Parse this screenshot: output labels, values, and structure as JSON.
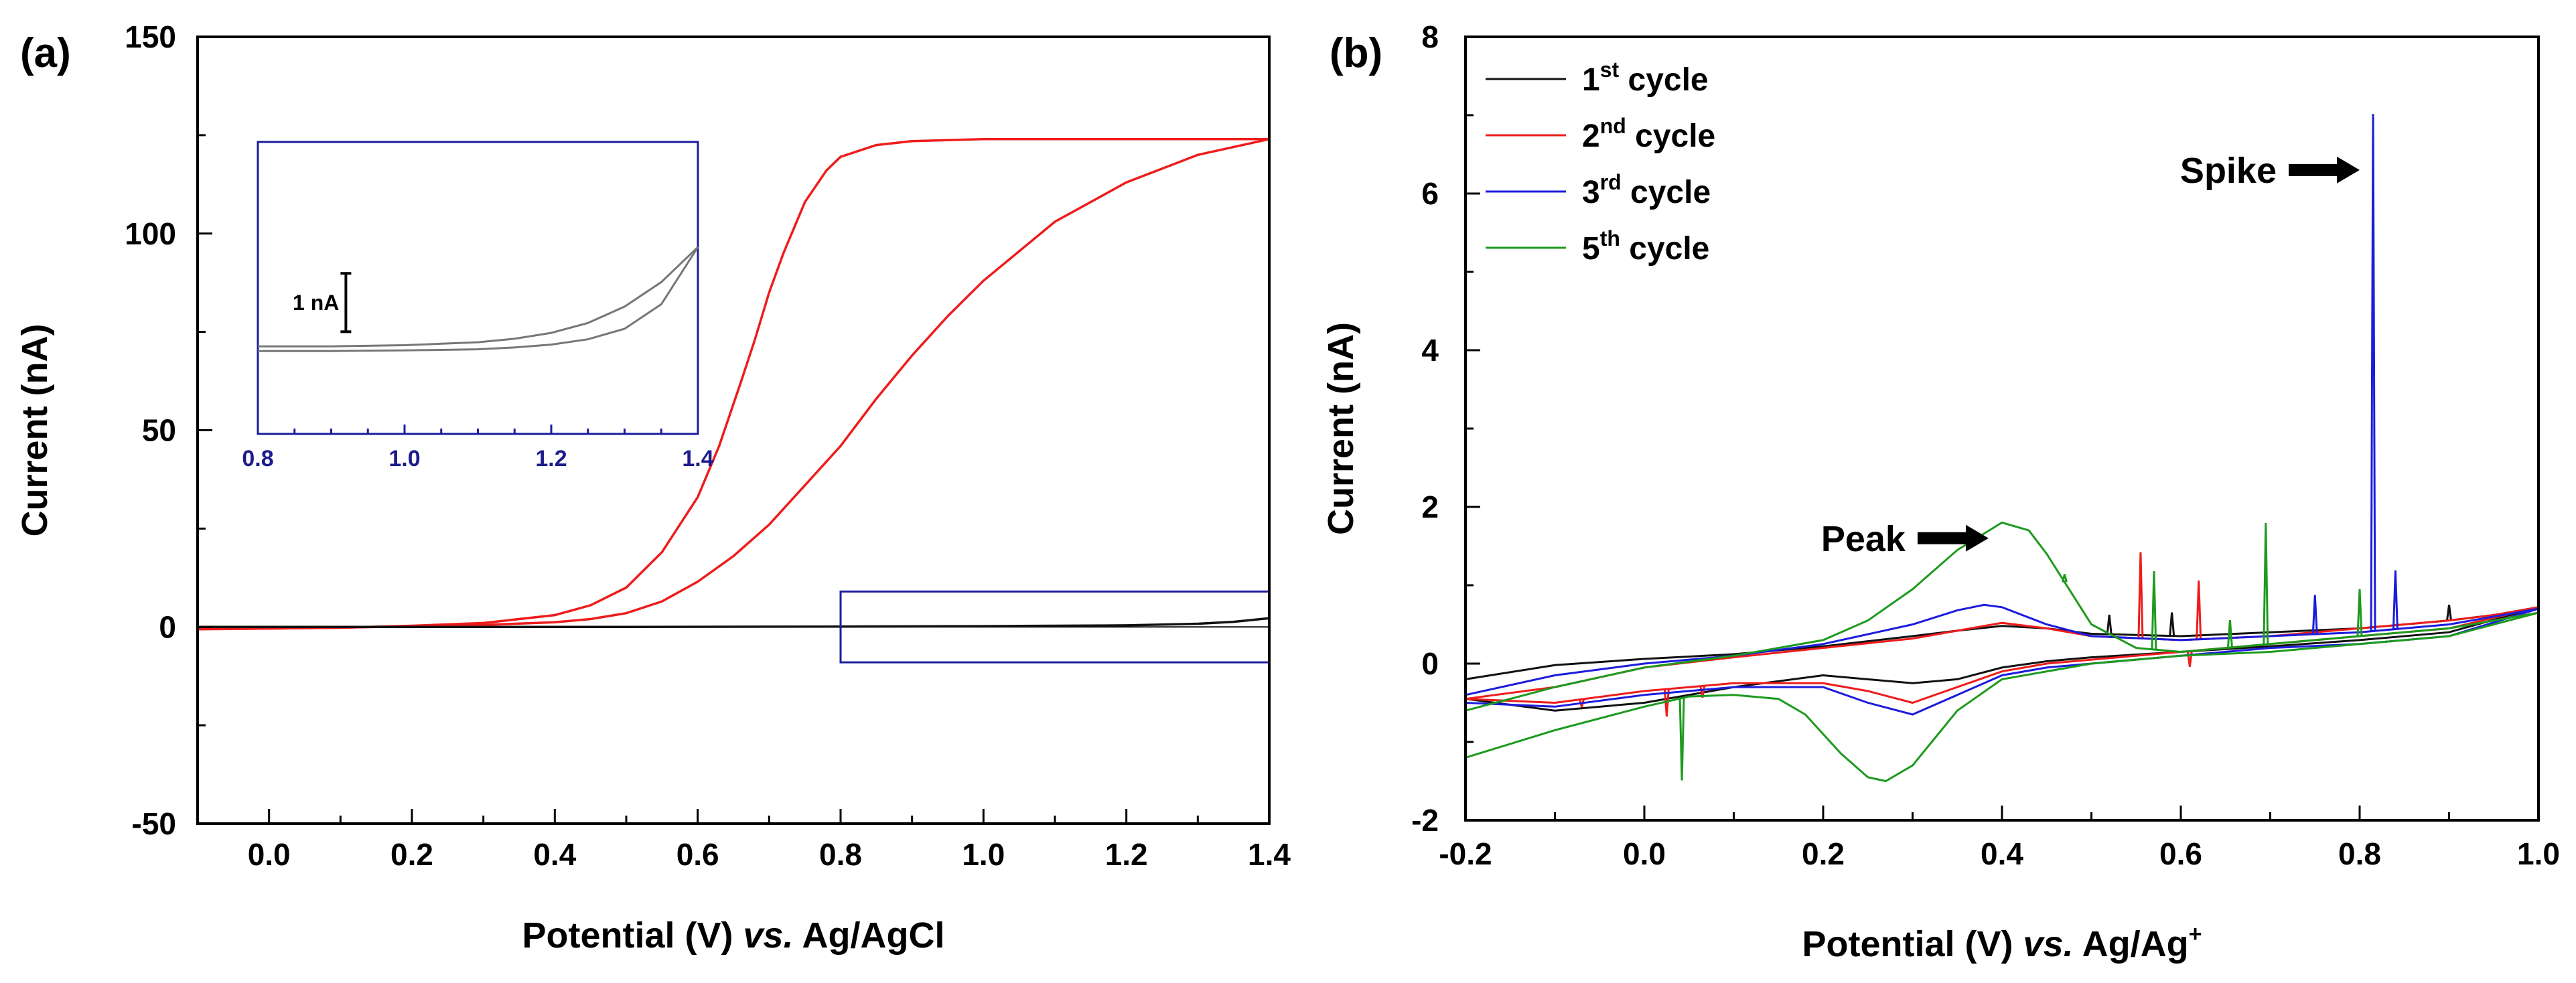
{
  "figure": {
    "panel_a": "(a)",
    "panel_b": "(b)"
  },
  "chart_data": [
    {
      "type": "line",
      "panel": "(a)",
      "title": "",
      "xlabel_parts": [
        "Potential (V) ",
        "vs.",
        " Ag/AgCl"
      ],
      "ylabel": "Current (nA)",
      "xlim": [
        -0.1,
        1.4
      ],
      "ylim": [
        -50,
        150
      ],
      "xticks": [
        0.0,
        0.2,
        0.4,
        0.6,
        0.8,
        1.0,
        1.2,
        1.4
      ],
      "xtick_labels": [
        "0.0",
        "0.2",
        "0.4",
        "0.6",
        "0.8",
        "1.0",
        "1.2",
        "1.4"
      ],
      "yticks": [
        -50,
        0,
        50,
        100,
        150
      ],
      "ytick_labels": [
        "-50",
        "0",
        "50",
        "100",
        "150"
      ],
      "grid": false,
      "colors": {
        "red": "#ee1c1c",
        "black": "#111111",
        "blue": "#1c1c9c"
      },
      "series": [
        {
          "name": "red CV forward",
          "color": "#ee1c1c",
          "x": [
            -0.1,
            0.0,
            0.1,
            0.2,
            0.3,
            0.4,
            0.45,
            0.5,
            0.55,
            0.6,
            0.63,
            0.66,
            0.68,
            0.7,
            0.72,
            0.75,
            0.78,
            0.8,
            0.85,
            0.9,
            1.0,
            1.1,
            1.2,
            1.3,
            1.4
          ],
          "y": [
            -0.5,
            -0.4,
            -0.2,
            0.3,
            1.0,
            3.0,
            5.5,
            10,
            19,
            33,
            46,
            62,
            73,
            85,
            95,
            108,
            116,
            119.5,
            122.5,
            123.5,
            124,
            124,
            124,
            124,
            124
          ]
        },
        {
          "name": "red CV reverse",
          "color": "#ee1c1c",
          "x": [
            1.4,
            1.3,
            1.2,
            1.1,
            1.0,
            0.95,
            0.9,
            0.85,
            0.8,
            0.75,
            0.7,
            0.65,
            0.6,
            0.55,
            0.5,
            0.45,
            0.4,
            0.3,
            0.2,
            0.1,
            0.0,
            -0.1
          ],
          "y": [
            124,
            120,
            113,
            103,
            88,
            79,
            69,
            58,
            46,
            36,
            26,
            18,
            11.5,
            6.5,
            3.5,
            2.0,
            1.2,
            0.5,
            0.2,
            -0.2,
            -0.4,
            -0.6
          ]
        },
        {
          "name": "black blank",
          "color": "#111111",
          "x": [
            -0.1,
            0.2,
            0.5,
            0.8,
            1.0,
            1.2,
            1.3,
            1.35,
            1.4
          ],
          "y": [
            0,
            0,
            0,
            0.1,
            0.2,
            0.4,
            0.8,
            1.3,
            2.2
          ]
        }
      ],
      "highlight_box": {
        "x": [
          0.8,
          1.4
        ],
        "y": [
          -9,
          9
        ],
        "color": "#1c1c9c"
      },
      "inset": {
        "xlim": [
          0.8,
          1.4
        ],
        "ylim": [
          -1.5,
          3.5
        ],
        "xticks": [
          0.8,
          1.0,
          1.2,
          1.4
        ],
        "xtick_labels": [
          "0.8",
          "1.0",
          "1.2",
          "1.4"
        ],
        "scalebar_label": "1 nA",
        "scalebar_nA": 1.0,
        "series": [
          {
            "name": "inset upper",
            "x": [
              0.8,
              0.9,
              1.0,
              1.1,
              1.15,
              1.2,
              1.25,
              1.3,
              1.35,
              1.4
            ],
            "y": [
              0.0,
              0.0,
              0.02,
              0.07,
              0.13,
              0.23,
              0.4,
              0.68,
              1.1,
              1.7
            ]
          },
          {
            "name": "inset lower",
            "x": [
              0.8,
              0.9,
              1.0,
              1.1,
              1.15,
              1.2,
              1.25,
              1.3,
              1.35,
              1.4
            ],
            "y": [
              -0.08,
              -0.08,
              -0.07,
              -0.05,
              -0.02,
              0.03,
              0.12,
              0.3,
              0.72,
              1.7
            ]
          }
        ]
      }
    },
    {
      "type": "line",
      "panel": "(b)",
      "title": "",
      "xlabel_parts": [
        "Potential (V) ",
        "vs.",
        " Ag/Ag",
        "+"
      ],
      "ylabel": "Current (nA)",
      "xlim": [
        -0.2,
        1.0
      ],
      "ylim": [
        -2,
        8
      ],
      "xticks": [
        -0.2,
        0.0,
        0.2,
        0.4,
        0.6,
        0.8,
        1.0
      ],
      "xtick_labels": [
        "-0.2",
        "0.0",
        "0.2",
        "0.4",
        "0.6",
        "0.8",
        "1.0"
      ],
      "yticks": [
        -2,
        0,
        2,
        4,
        6,
        8
      ],
      "ytick_labels": [
        "-2",
        "0",
        "2",
        "4",
        "6",
        "8"
      ],
      "grid": false,
      "legend": {
        "placement": "top-left",
        "entries": [
          {
            "pre": "1",
            "sup": "st",
            "post": " cycle",
            "color": "#111111"
          },
          {
            "pre": "2",
            "sup": "nd",
            "post": " cycle",
            "color": "#ee1c1c"
          },
          {
            "pre": "3",
            "sup": "rd",
            "post": " cycle",
            "color": "#1c1cdd"
          },
          {
            "pre": "5",
            "sup": "th",
            "post": " cycle",
            "color": "#1e9a1e"
          }
        ]
      },
      "annotations": [
        {
          "text": "Peak",
          "arrow_tip": [
            0.385,
            1.6
          ]
        },
        {
          "text": "Spike",
          "arrow_tip": [
            0.8,
            6.3
          ]
        }
      ],
      "series": [
        {
          "name": "1st cycle",
          "color": "#111111",
          "forward": {
            "x": [
              -0.2,
              -0.1,
              0.0,
              0.1,
              0.2,
              0.3,
              0.35,
              0.4,
              0.45,
              0.5,
              0.6,
              0.7,
              0.8,
              0.9,
              0.95,
              1.0
            ],
            "y": [
              -0.2,
              -0.02,
              0.06,
              0.12,
              0.22,
              0.35,
              0.42,
              0.48,
              0.45,
              0.38,
              0.35,
              0.4,
              0.45,
              0.55,
              0.62,
              0.72
            ]
          },
          "reverse": {
            "x": [
              1.0,
              0.9,
              0.8,
              0.7,
              0.6,
              0.5,
              0.45,
              0.4,
              0.35,
              0.3,
              0.2,
              0.1,
              0.0,
              -0.1,
              -0.2
            ],
            "y": [
              0.72,
              0.4,
              0.3,
              0.22,
              0.15,
              0.08,
              0.03,
              -0.05,
              -0.2,
              -0.25,
              -0.15,
              -0.3,
              -0.5,
              -0.6,
              -0.45
            ]
          },
          "spikes": [
            {
              "x": 0.52,
              "h": 0.25
            },
            {
              "x": 0.59,
              "h": 0.3
            },
            {
              "x": 0.9,
              "h": 0.2
            }
          ]
        },
        {
          "name": "2nd cycle",
          "color": "#ee1c1c",
          "forward": {
            "x": [
              -0.2,
              -0.1,
              0.0,
              0.1,
              0.2,
              0.3,
              0.35,
              0.4,
              0.45,
              0.5,
              0.6,
              0.7,
              0.8,
              0.9,
              0.95,
              1.0
            ],
            "y": [
              -0.45,
              -0.3,
              -0.05,
              0.08,
              0.2,
              0.32,
              0.42,
              0.52,
              0.45,
              0.35,
              0.3,
              0.35,
              0.45,
              0.55,
              0.62,
              0.72
            ]
          },
          "reverse": {
            "x": [
              1.0,
              0.9,
              0.8,
              0.7,
              0.6,
              0.5,
              0.45,
              0.4,
              0.35,
              0.3,
              0.25,
              0.2,
              0.1,
              0.0,
              -0.1,
              -0.2
            ],
            "y": [
              0.72,
              0.45,
              0.35,
              0.25,
              0.15,
              0.05,
              0.0,
              -0.1,
              -0.3,
              -0.5,
              -0.35,
              -0.25,
              -0.25,
              -0.35,
              -0.5,
              -0.45
            ]
          },
          "spikes": [
            {
              "x": 0.555,
              "h": 1.1
            },
            {
              "x": 0.62,
              "h": 0.75
            },
            {
              "x": 0.61,
              "h": -0.2
            },
            {
              "x": 0.025,
              "h": -0.35
            },
            {
              "x": 0.065,
              "h": -0.15
            },
            {
              "x": -0.07,
              "h": -0.1
            }
          ]
        },
        {
          "name": "3rd cycle",
          "color": "#1c1cdd",
          "forward": {
            "x": [
              -0.2,
              -0.1,
              0.0,
              0.1,
              0.2,
              0.3,
              0.35,
              0.38,
              0.4,
              0.45,
              0.5,
              0.6,
              0.7,
              0.8,
              0.9,
              1.0
            ],
            "y": [
              -0.4,
              -0.15,
              0.0,
              0.1,
              0.25,
              0.5,
              0.68,
              0.75,
              0.72,
              0.5,
              0.35,
              0.3,
              0.35,
              0.4,
              0.5,
              0.7
            ]
          },
          "reverse": {
            "x": [
              1.0,
              0.9,
              0.8,
              0.7,
              0.6,
              0.5,
              0.45,
              0.4,
              0.35,
              0.3,
              0.25,
              0.2,
              0.1,
              0.0,
              -0.1,
              -0.2
            ],
            "y": [
              0.7,
              0.35,
              0.25,
              0.2,
              0.1,
              0.0,
              -0.05,
              -0.15,
              -0.4,
              -0.65,
              -0.5,
              -0.3,
              -0.3,
              -0.4,
              -0.55,
              -0.5
            ]
          },
          "spikes": [
            {
              "x": 0.815,
              "h": 6.6
            },
            {
              "x": 0.75,
              "h": 0.5
            },
            {
              "x": 0.84,
              "h": 0.75
            }
          ]
        },
        {
          "name": "5th cycle",
          "color": "#1e9a1e",
          "forward": {
            "x": [
              -0.2,
              -0.1,
              0.0,
              0.1,
              0.2,
              0.25,
              0.3,
              0.35,
              0.4,
              0.43,
              0.45,
              0.5,
              0.55,
              0.6,
              0.7,
              0.8,
              0.9,
              1.0
            ],
            "y": [
              -0.6,
              -0.3,
              -0.05,
              0.1,
              0.3,
              0.55,
              0.95,
              1.45,
              1.8,
              1.7,
              1.4,
              0.5,
              0.2,
              0.15,
              0.25,
              0.35,
              0.45,
              0.65
            ]
          },
          "reverse": {
            "x": [
              1.0,
              0.9,
              0.8,
              0.7,
              0.6,
              0.5,
              0.4,
              0.35,
              0.3,
              0.27,
              0.25,
              0.22,
              0.18,
              0.15,
              0.1,
              0.05,
              0.0,
              -0.1,
              -0.2
            ],
            "y": [
              0.65,
              0.35,
              0.25,
              0.15,
              0.1,
              0.0,
              -0.2,
              -0.6,
              -1.3,
              -1.5,
              -1.45,
              -1.15,
              -0.65,
              -0.45,
              -0.4,
              -0.42,
              -0.55,
              -0.85,
              -1.2
            ]
          },
          "spikes": [
            {
              "x": 0.57,
              "h": 1.0
            },
            {
              "x": 0.695,
              "h": 1.55
            },
            {
              "x": 0.655,
              "h": 0.35
            },
            {
              "x": 0.8,
              "h": 0.6
            },
            {
              "x": 0.042,
              "h": -1.05
            },
            {
              "x": 0.47,
              "h": 0.1
            }
          ]
        }
      ]
    }
  ]
}
